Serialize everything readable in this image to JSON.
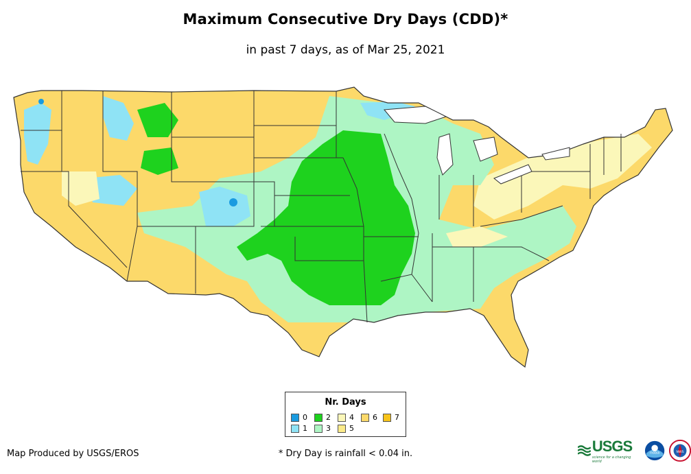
{
  "title": "Maximum Consecutive Dry Days (CDD)*",
  "subtitle": "in past 7 days, as of Mar 25, 2021",
  "legend": {
    "title": "Nr. Days",
    "items": [
      {
        "label": "0",
        "color": "#1a9be0"
      },
      {
        "label": "1",
        "color": "#8fe3f5"
      },
      {
        "label": "2",
        "color": "#1ed21e"
      },
      {
        "label": "3",
        "color": "#aef5c4"
      },
      {
        "label": "4",
        "color": "#fbf7b9"
      },
      {
        "label": "5",
        "color": "#fceb8a"
      },
      {
        "label": "6",
        "color": "#fcd96a"
      },
      {
        "label": "7",
        "color": "#f7c31a"
      }
    ]
  },
  "footer": {
    "producer": "Map Produced by USGS/EROS",
    "footnote": "* Dry Day is rainfall < 0.04 in."
  },
  "logos": {
    "usgs": "USGS",
    "usgs_tagline": "science for a changing world",
    "noaa": "noaa",
    "nws": "NWS"
  }
}
